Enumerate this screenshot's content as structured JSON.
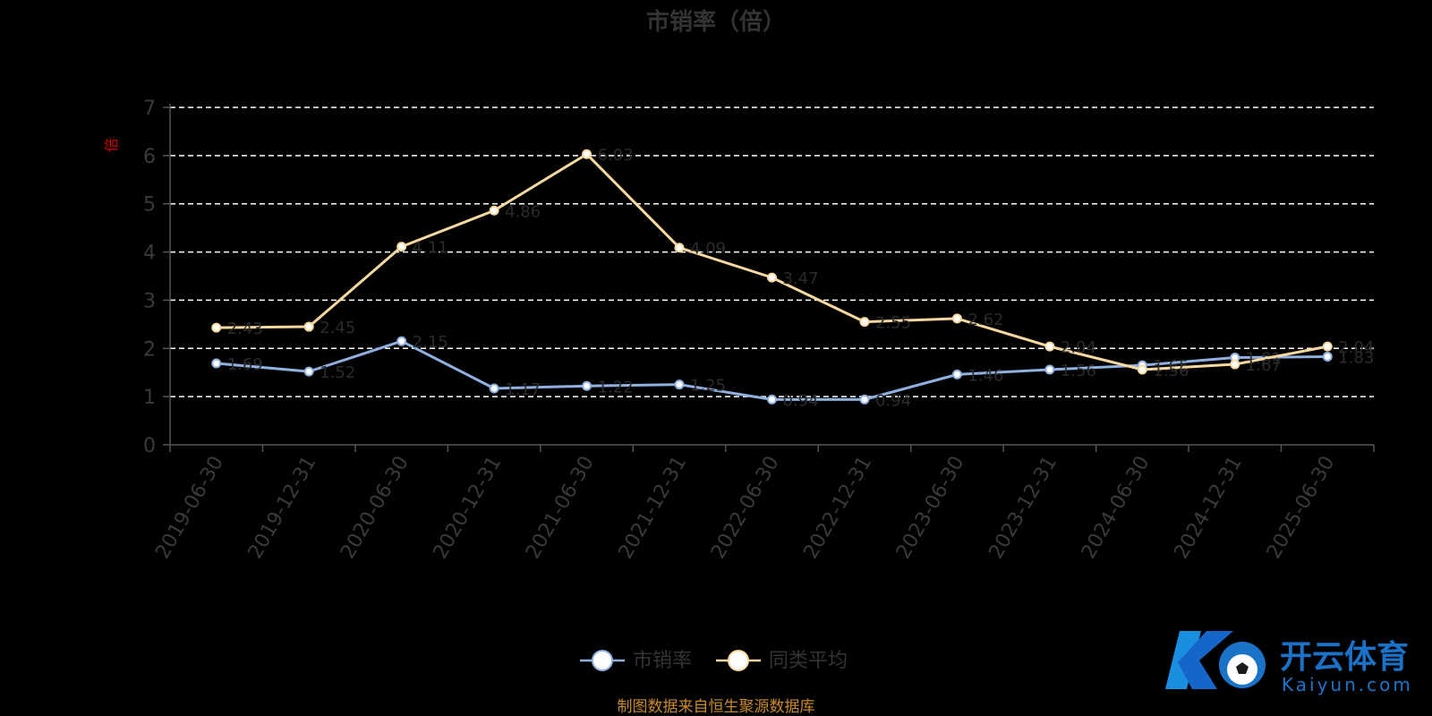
{
  "chart_data": {
    "type": "line",
    "title": "市销率（倍）",
    "ylabel": "倍",
    "ylim": [
      0,
      7
    ],
    "yticks": [
      0,
      1,
      2,
      3,
      4,
      5,
      6,
      7
    ],
    "grid": true,
    "legend_position": "bottom",
    "categories": [
      "2019-06-30",
      "2019-12-31",
      "2020-06-30",
      "2020-12-31",
      "2021-06-30",
      "2021-12-31",
      "2022-06-30",
      "2022-12-31",
      "2023-06-30",
      "2023-12-31",
      "2024-06-30",
      "2024-12-31",
      "2025-06-30"
    ],
    "series": [
      {
        "name": "市销率",
        "color": "#8fb0e0",
        "values": [
          1.69,
          1.52,
          2.15,
          1.17,
          1.22,
          1.25,
          0.94,
          0.94,
          1.46,
          1.56,
          1.65,
          1.81,
          1.83
        ]
      },
      {
        "name": "同类平均",
        "color": "#f7d9a0",
        "values": [
          2.43,
          2.45,
          4.11,
          4.86,
          6.03,
          4.09,
          3.47,
          2.55,
          2.62,
          2.04,
          1.56,
          1.67,
          2.04
        ]
      }
    ]
  },
  "source": "制图数据来自恒生聚源数据库",
  "watermark": {
    "name": "开云体育",
    "domain": "Kaiyun.com"
  }
}
